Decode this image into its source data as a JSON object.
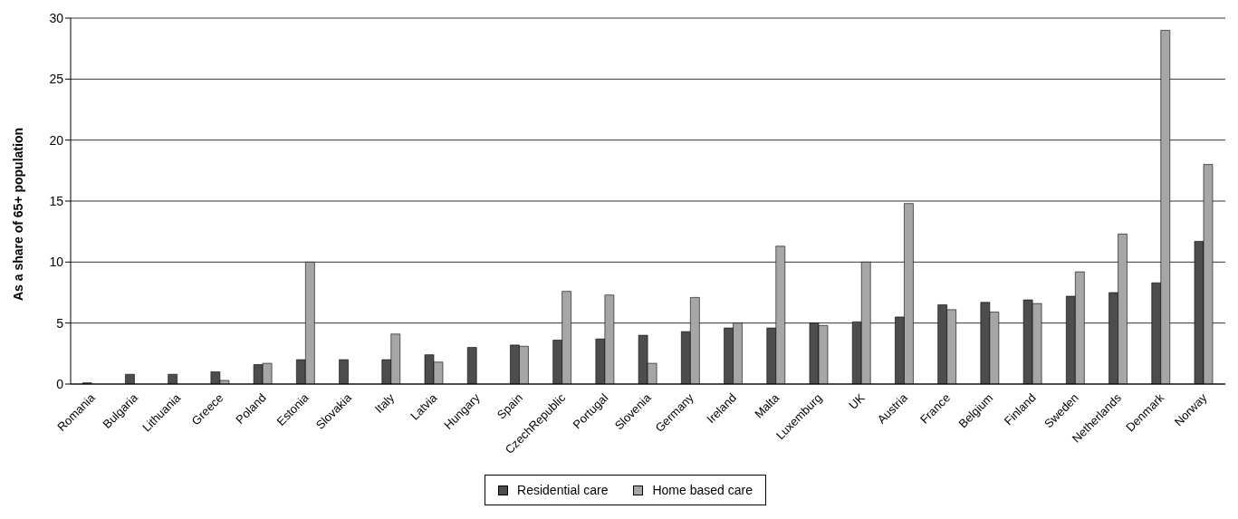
{
  "chart_data": {
    "type": "bar",
    "ylabel": "As a share of 65+ population",
    "categories": [
      "Romania",
      "Bulgaria",
      "Lithuania",
      "Greece",
      "Poland",
      "Estonia",
      "Slovakia",
      "Italy",
      "Latvia",
      "Hungary",
      "Spain",
      "CzechRepublic",
      "Portugal",
      "Slovenia",
      "Germany",
      "Ireland",
      "Malta",
      "Luxemburg",
      "UK",
      "Austria",
      "France",
      "Belgium",
      "Finland",
      "Sweden",
      "Netherlands",
      "Denmark",
      "Norway"
    ],
    "series": [
      {
        "name": "Residential care",
        "color": "#4d4d4d",
        "values": [
          0.1,
          0.8,
          0.8,
          1.0,
          1.6,
          2.0,
          2.0,
          2.0,
          2.4,
          3.0,
          3.2,
          3.6,
          3.7,
          4.0,
          4.3,
          4.6,
          4.6,
          5.0,
          5.1,
          5.5,
          6.5,
          6.7,
          6.9,
          7.2,
          7.5,
          8.3,
          11.7
        ]
      },
      {
        "name": "Home based care",
        "color": "#a6a6a6",
        "values": [
          0,
          0,
          0,
          0.3,
          1.7,
          10,
          0,
          4.1,
          1.8,
          0,
          3.1,
          7.6,
          7.3,
          1.7,
          7.1,
          5.0,
          11.3,
          4.8,
          10,
          14.8,
          6.1,
          5.9,
          6.6,
          9.2,
          12.3,
          29,
          18
        ]
      }
    ],
    "ylim": [
      0,
      30
    ],
    "yticks": [
      0,
      5,
      10,
      15,
      20,
      25,
      30
    ],
    "grid": "y",
    "legend": "bottom"
  }
}
